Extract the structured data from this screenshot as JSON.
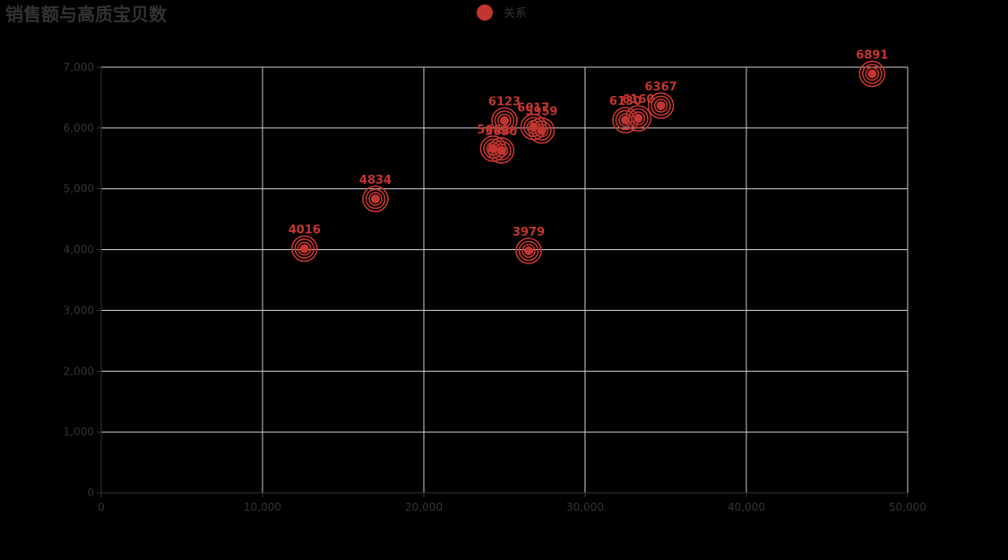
{
  "chart_data": {
    "type": "scatter",
    "title": "销售额与高质宝贝数",
    "legend": {
      "entries": [
        "关系"
      ],
      "placement": "top-center"
    },
    "xlim": [
      0,
      50000
    ],
    "ylim": [
      0,
      7000
    ],
    "x_ticks": [
      0,
      10000,
      20000,
      30000,
      40000,
      50000
    ],
    "x_tick_labels": [
      "0",
      "10,000",
      "20,000",
      "30,000",
      "40,000",
      "50,000"
    ],
    "y_ticks": [
      0,
      1000,
      2000,
      3000,
      4000,
      5000,
      6000,
      7000
    ],
    "y_tick_labels": [
      "0",
      "1,000",
      "2,000",
      "3,000",
      "4,000",
      "5,000",
      "6,000",
      "7,000"
    ],
    "grid": true,
    "series": [
      {
        "name": "关系",
        "color": "#c23531",
        "points": [
          {
            "x": 12600,
            "y": 4016,
            "label": "4016"
          },
          {
            "x": 17000,
            "y": 4834,
            "label": "4834"
          },
          {
            "x": 24300,
            "y": 5660,
            "label": "5660"
          },
          {
            "x": 24800,
            "y": 5630,
            "label": "5630"
          },
          {
            "x": 25000,
            "y": 6123,
            "label": "6123"
          },
          {
            "x": 26500,
            "y": 3979,
            "label": "3979"
          },
          {
            "x": 26800,
            "y": 6017,
            "label": "6017"
          },
          {
            "x": 27300,
            "y": 5959,
            "label": "5959"
          },
          {
            "x": 32500,
            "y": 6130,
            "label": "6130"
          },
          {
            "x": 33300,
            "y": 6160,
            "label": "6160"
          },
          {
            "x": 34700,
            "y": 6367,
            "label": "6367"
          },
          {
            "x": 47800,
            "y": 6891,
            "label": "6891"
          }
        ]
      }
    ]
  }
}
